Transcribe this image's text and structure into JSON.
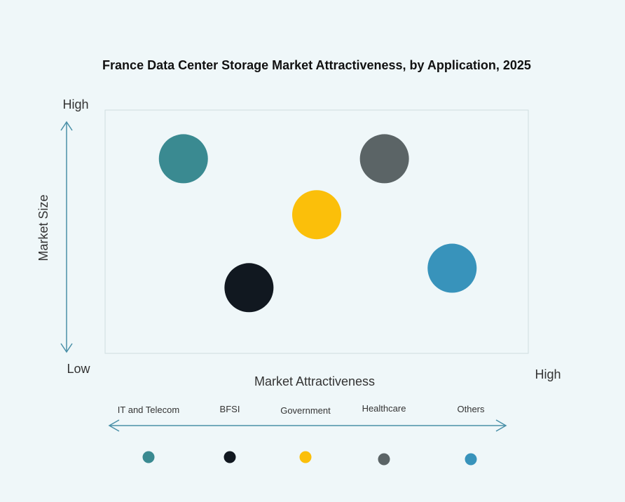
{
  "chart_data": {
    "type": "scatter",
    "title": "France Data Center Storage Market Attractiveness,  by Application, 2025",
    "xlabel": "Market Attractiveness",
    "ylabel": "Market Size",
    "x_low_label": "Low",
    "x_high_label": "High",
    "y_high_label": "High",
    "xlim": [
      0,
      10
    ],
    "ylim": [
      0,
      10
    ],
    "grid": false,
    "legend_position": "bottom",
    "series": [
      {
        "name": "IT and Telecom",
        "x": 1.85,
        "y": 8.0,
        "color": "#3a8a91"
      },
      {
        "name": "BFSI",
        "x": 3.4,
        "y": 2.7,
        "color": "#111820"
      },
      {
        "name": "Government",
        "x": 5.0,
        "y": 5.7,
        "color": "#fbbf0a"
      },
      {
        "name": "Healthcare",
        "x": 6.6,
        "y": 8.0,
        "color": "#5b6466"
      },
      {
        "name": "Others",
        "x": 8.2,
        "y": 3.5,
        "color": "#3893bb"
      }
    ]
  }
}
